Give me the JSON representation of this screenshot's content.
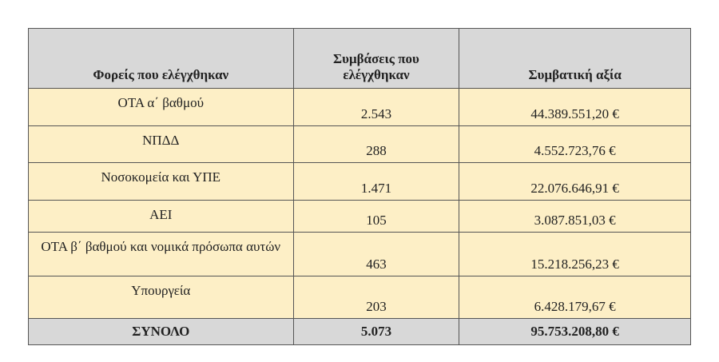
{
  "table": {
    "header": [
      "Φορείς που ελέγχθηκαν",
      "Συμβάσεις που ελέγχθηκαν",
      "Συμβατική αξία"
    ],
    "rows": [
      [
        "ΟΤΑ α΄ βαθμού",
        "2.543",
        "44.389.551,20 €"
      ],
      [
        "ΝΠΔΔ",
        "288",
        "4.552.723,76 €"
      ],
      [
        "Νοσοκομεία και ΥΠΕ",
        "1.471",
        "22.076.646,91 €"
      ],
      [
        "ΑΕΙ",
        "105",
        "3.087.851,03 €"
      ],
      [
        "ΟΤΑ β΄ βαθμού και νομικά πρόσωπα αυτών",
        "463",
        "15.218.256,23 €"
      ],
      [
        "Υπουργεία",
        "203",
        "6.428.179,67 €"
      ]
    ],
    "total": [
      "ΣΥΝΟΛΟ",
      "5.073",
      "95.753.208,80 €"
    ]
  }
}
